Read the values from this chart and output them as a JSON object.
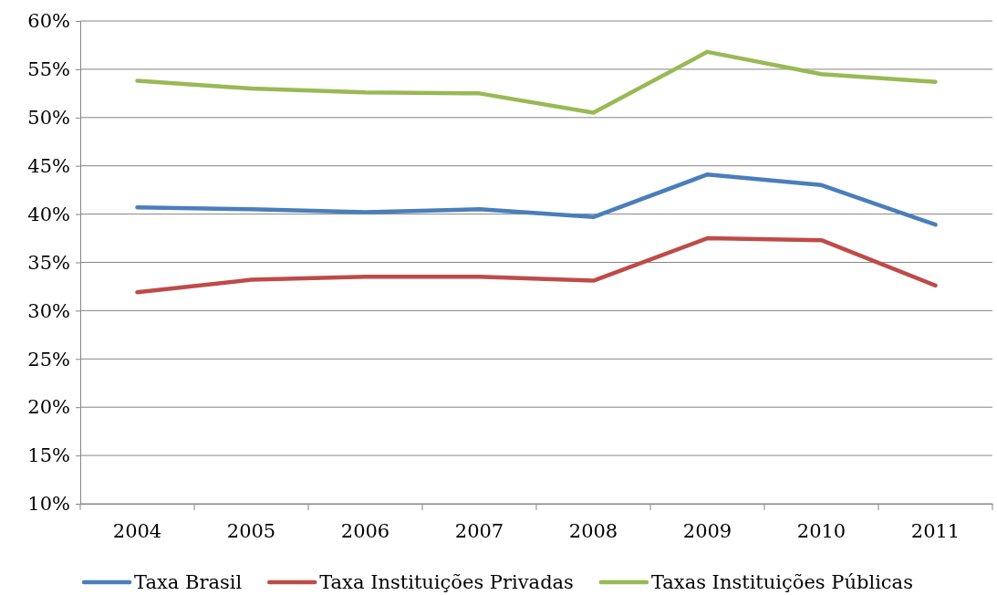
{
  "chart_data": {
    "type": "line",
    "categories": [
      "2004",
      "2005",
      "2006",
      "2007",
      "2008",
      "2009",
      "2010",
      "2011"
    ],
    "series": [
      {
        "name": "Taxa Brasil",
        "color": "#4a7ebb",
        "values": [
          40.7,
          40.5,
          40.2,
          40.5,
          39.7,
          44.1,
          43.0,
          38.9
        ]
      },
      {
        "name": "Taxa Instituições Privadas",
        "color": "#be4b48",
        "values": [
          31.9,
          33.2,
          33.5,
          33.5,
          33.1,
          37.5,
          37.3,
          32.6
        ]
      },
      {
        "name": "Taxas Instituições Públicas",
        "color": "#98b954",
        "values": [
          53.8,
          53.0,
          52.6,
          52.5,
          50.5,
          56.8,
          54.5,
          53.7
        ]
      }
    ],
    "ylim": [
      10,
      60
    ],
    "yticks": [
      {
        "value": 10,
        "label": "10%"
      },
      {
        "value": 15,
        "label": "15%"
      },
      {
        "value": 20,
        "label": "20%"
      },
      {
        "value": 25,
        "label": "25%"
      },
      {
        "value": 30,
        "label": "30%"
      },
      {
        "value": 35,
        "label": "35%"
      },
      {
        "value": 40,
        "label": "40%"
      },
      {
        "value": 45,
        "label": "45%"
      },
      {
        "value": 50,
        "label": "50%"
      },
      {
        "value": 55,
        "label": "55%"
      },
      {
        "value": 60,
        "label": "60%"
      }
    ],
    "grid": "y",
    "legend": "bottom",
    "marker": "none",
    "line_style": "solid"
  }
}
